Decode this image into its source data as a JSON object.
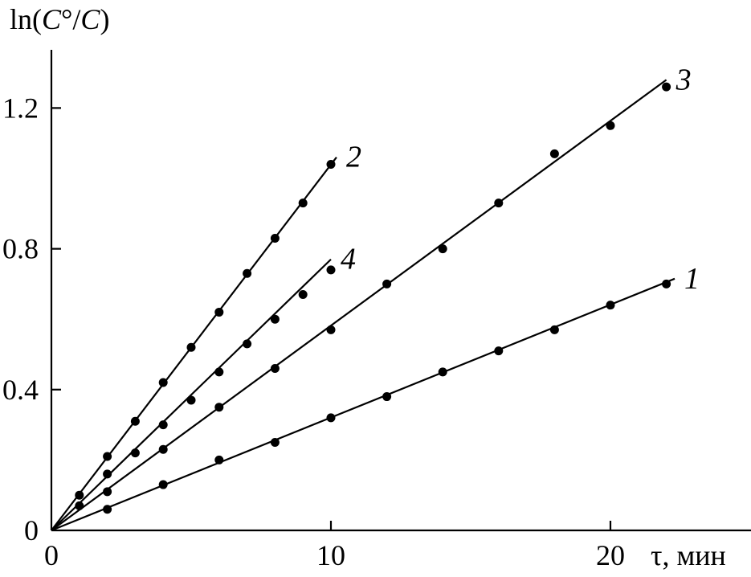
{
  "chart_data": {
    "type": "scatter",
    "title": "",
    "ylabel_parts": {
      "prefix": "ln(",
      "num": "C",
      "mid": "°/",
      "den": "C",
      "suffix": ")"
    },
    "xlabel": "τ, мин",
    "xlim": [
      0,
      25
    ],
    "ylim": [
      0,
      1.35
    ],
    "xticks": [
      0,
      10,
      20
    ],
    "yticks": [
      0,
      0.4,
      0.8,
      1.2
    ],
    "xtick_labels": [
      "0",
      "10",
      "20"
    ],
    "ytick_labels": [
      "0",
      "0.4",
      "0.8",
      "1.2"
    ],
    "grid": false,
    "legend": "none",
    "series": [
      {
        "name": "1",
        "x": [
          2,
          4,
          6,
          8,
          10,
          12,
          14,
          16,
          18,
          20,
          22
        ],
        "y": [
          0.06,
          0.13,
          0.2,
          0.25,
          0.32,
          0.38,
          0.45,
          0.51,
          0.57,
          0.64,
          0.7
        ],
        "fit_end": [
          22.3,
          0.715
        ]
      },
      {
        "name": "2",
        "x": [
          1,
          2,
          3,
          4,
          5,
          6,
          7,
          8,
          9,
          10
        ],
        "y": [
          0.1,
          0.21,
          0.31,
          0.42,
          0.52,
          0.62,
          0.73,
          0.83,
          0.93,
          1.04
        ],
        "fit_end": [
          10.2,
          1.06
        ]
      },
      {
        "name": "3",
        "x": [
          2,
          4,
          6,
          8,
          10,
          12,
          14,
          16,
          18,
          20,
          22
        ],
        "y": [
          0.11,
          0.23,
          0.35,
          0.46,
          0.57,
          0.7,
          0.8,
          0.93,
          1.07,
          1.15,
          1.26
        ],
        "fit_end": [
          22,
          1.28
        ]
      },
      {
        "name": "4",
        "x": [
          1,
          2,
          3,
          4,
          5,
          6,
          7,
          8,
          9,
          10
        ],
        "y": [
          0.07,
          0.16,
          0.22,
          0.3,
          0.37,
          0.45,
          0.53,
          0.6,
          0.67,
          0.74
        ],
        "fit_end": [
          10,
          0.77
        ]
      }
    ]
  }
}
